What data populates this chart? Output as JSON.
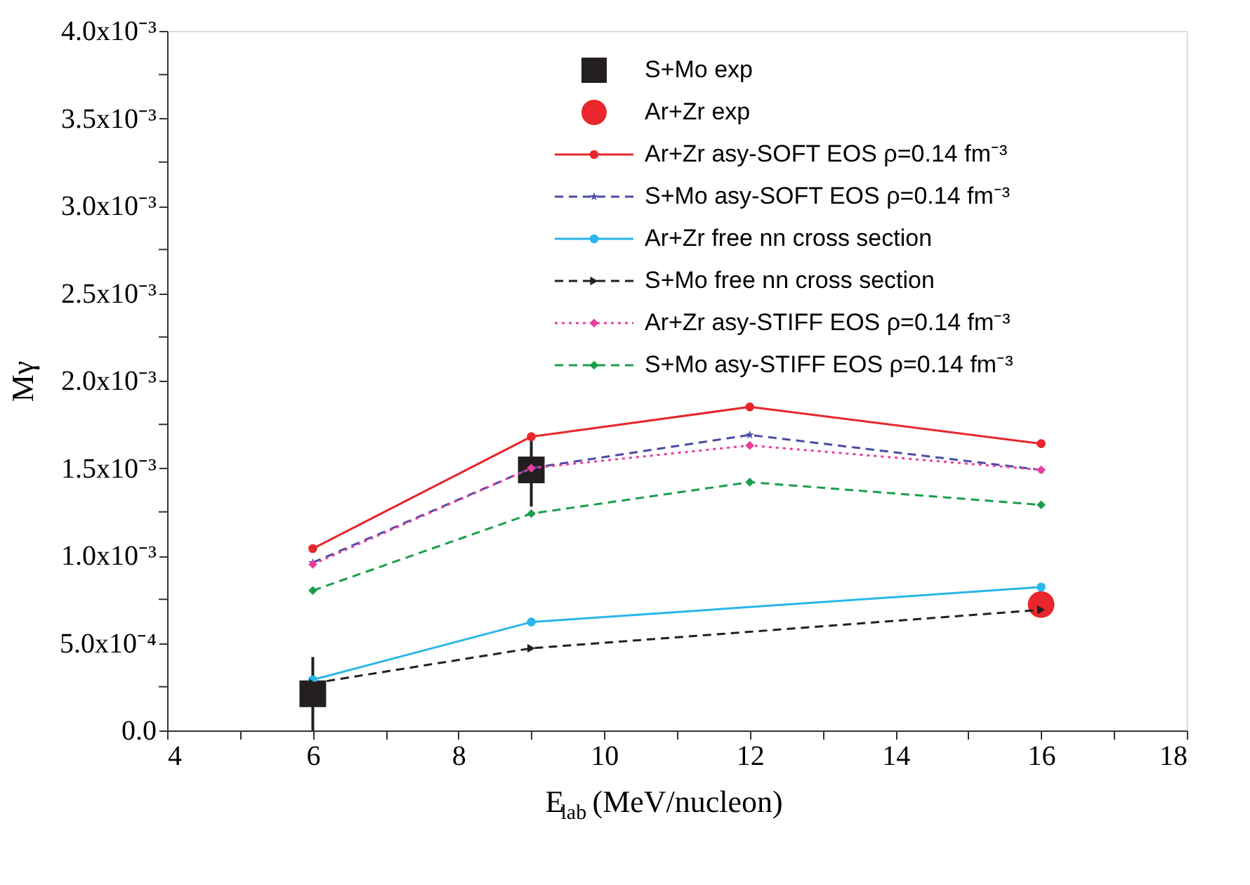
{
  "chart_data": {
    "type": "line",
    "xlabel": "E$_{lab}$ (MeV/nucleon)",
    "ylabel": "Mγ",
    "xlim": [
      4,
      18
    ],
    "xticks": [
      4,
      {
        "value": 5,
        "label": null
      },
      6,
      {
        "value": 7,
        "label": null
      },
      8,
      {
        "value": 9,
        "label": null
      },
      10,
      {
        "value": 11,
        "label": null
      },
      12,
      {
        "value": 13,
        "label": null
      },
      14,
      {
        "value": 15,
        "label": null
      },
      16,
      {
        "value": 17,
        "label": null
      },
      18
    ],
    "ylim": [
      0,
      0.004
    ],
    "yticks": [
      {
        "value": 0,
        "label": "0.0"
      },
      {
        "value": 0.00025,
        "label": null
      },
      {
        "value": 0.0005,
        "label": "5.0x10⁻⁴"
      },
      {
        "value": 0.00075,
        "label": null
      },
      {
        "value": 0.001,
        "label": "1.0x10⁻³"
      },
      {
        "value": 0.00125,
        "label": null
      },
      {
        "value": 0.0015,
        "label": "1.5x10⁻³"
      },
      {
        "value": 0.00175,
        "label": null
      },
      {
        "value": 0.002,
        "label": "2.0x10⁻³"
      },
      {
        "value": 0.00225,
        "label": null
      },
      {
        "value": 0.0025,
        "label": "2.5x10⁻³"
      },
      {
        "value": 0.00275,
        "label": null
      },
      {
        "value": 0.003,
        "label": "3.0x10⁻³"
      },
      {
        "value": 0.00325,
        "label": null
      },
      {
        "value": 0.0035,
        "label": "3.5x10⁻³"
      },
      {
        "value": 0.00375,
        "label": null
      },
      {
        "value": 0.004,
        "label": "4.0x10⁻³"
      }
    ],
    "grid": false,
    "legend": "top right",
    "series": [
      {
        "name": "S+Mo exp",
        "type": "scatter",
        "marker": "square",
        "color": "#231f20",
        "x": [
          6,
          9
        ],
        "values": [
          0.00021,
          0.00149
        ],
        "errors": [
          0.00021,
          0.00021
        ]
      },
      {
        "name": "Ar+Zr exp",
        "type": "scatter",
        "marker": "circle",
        "color": "#e8262b",
        "x": [
          16
        ],
        "values": [
          0.00072
        ]
      },
      {
        "name": "Ar+Zr asy-SOFT EOS ρ=0.14 fm⁻³",
        "type": "line",
        "marker": "circle",
        "line_style": "solid",
        "color": "#e8262b",
        "x": [
          6,
          9,
          12,
          16
        ],
        "values": [
          0.00104,
          0.00168,
          0.00185,
          0.00164
        ]
      },
      {
        "name": "S+Mo asy-SOFT EOS ρ=0.14 fm⁻³",
        "type": "line",
        "marker": "star",
        "line_style": "dashed",
        "color": "#4a4aa8",
        "x": [
          6,
          9,
          12,
          16
        ],
        "values": [
          0.00096,
          0.0015,
          0.00169,
          0.00149
        ]
      },
      {
        "name": "Ar+Zr free nn cross section",
        "type": "line",
        "marker": "circle",
        "line_style": "solid",
        "color": "#29b6e8",
        "x": [
          6,
          9,
          16
        ],
        "values": [
          0.00029,
          0.00062,
          0.00082
        ]
      },
      {
        "name": "S+Mo free nn cross section",
        "type": "line",
        "marker": "triangle",
        "line_style": "dashed",
        "color": "#231f20",
        "x": [
          6,
          9,
          16
        ],
        "values": [
          0.00027,
          0.00047,
          0.00069
        ]
      },
      {
        "name": "Ar+Zr asy-STIFF EOS ρ=0.14 fm⁻³",
        "type": "line",
        "marker": "diamond",
        "line_style": "dotted",
        "color": "#e83e9c",
        "x": [
          6,
          9,
          12,
          16
        ],
        "values": [
          0.00095,
          0.0015,
          0.00163,
          0.00149
        ]
      },
      {
        "name": "S+Mo asy-STIFF EOS ρ=0.14 fm⁻³",
        "type": "line",
        "marker": "diamond",
        "line_style": "dashed",
        "color": "#1a9e4a",
        "x": [
          6,
          9,
          12,
          16
        ],
        "values": [
          0.0008,
          0.00124,
          0.00142,
          0.00129
        ]
      }
    ]
  }
}
